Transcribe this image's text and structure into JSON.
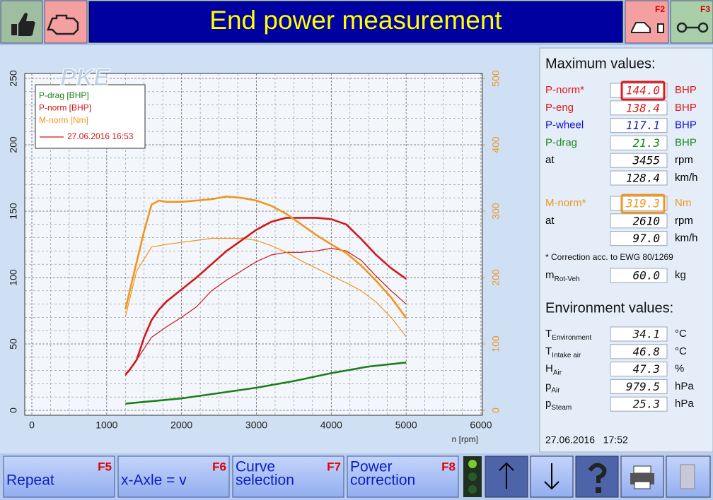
{
  "header": {
    "title": "End power measurement",
    "f2": "F2",
    "f3": "F3"
  },
  "watermark": "PKE",
  "chart_data": {
    "type": "line",
    "x_label": "n [rpm]",
    "xlim": [
      0,
      6000
    ],
    "xticks": [
      0,
      1000,
      2000,
      3000,
      4000,
      5000,
      6000
    ],
    "ylim": [
      0,
      250
    ],
    "yticks": [
      0,
      50,
      100,
      150,
      200,
      250
    ],
    "y2lim": [
      0,
      500
    ],
    "y2ticks": [
      0,
      100,
      200,
      300,
      400,
      500
    ],
    "grid": true,
    "legend": "upper left",
    "series": [
      {
        "name": "P-drag [BHP]",
        "color": "#1b7d1b",
        "x": [
          1250,
          2000,
          2500,
          3000,
          3500,
          4000,
          4500,
          5000
        ],
        "values": [
          5,
          9,
          13,
          17,
          22,
          28,
          33,
          36
        ]
      },
      {
        "name": "P-norm [BHP]",
        "color": "#d01818",
        "x": [
          1250,
          1300,
          1400,
          1500,
          1600,
          1700,
          1800,
          2000,
          2200,
          2400,
          2600,
          2800,
          3000,
          3200,
          3400,
          3600,
          3800,
          4000,
          4200,
          4400,
          4600,
          4800,
          5000
        ],
        "values": [
          27,
          30,
          38,
          55,
          68,
          76,
          82,
          91,
          100,
          110,
          120,
          128,
          136,
          142,
          145,
          145,
          145,
          144,
          140,
          129,
          117,
          107,
          99
        ]
      },
      {
        "name": "M-norm [Nm]",
        "color": "#f0961e",
        "axis": "y2",
        "x": [
          1250,
          1350,
          1500,
          1600,
          1700,
          1800,
          2000,
          2200,
          2400,
          2600,
          2800,
          3000,
          3200,
          3400,
          3600,
          3800,
          4000,
          4200,
          4400,
          4600,
          4800,
          5000
        ],
        "values": [
          152,
          200,
          270,
          310,
          316,
          314,
          314,
          316,
          318,
          322,
          320,
          316,
          308,
          296,
          280,
          264,
          250,
          237,
          218,
          195,
          170,
          139
        ]
      }
    ],
    "comparison": {
      "label": "27.06.2016 16:53",
      "color": "#d01818",
      "series": [
        {
          "color": "#c81818",
          "x": [
            1250,
            1400,
            1600,
            1800,
            2000,
            2200,
            2400,
            2600,
            2800,
            3000,
            3200,
            3400,
            3600,
            3800,
            4000,
            4200,
            4400,
            4600,
            4800,
            5000
          ],
          "values": [
            26,
            38,
            55,
            63,
            70,
            78,
            90,
            98,
            105,
            112,
            117,
            119,
            119,
            120,
            122,
            120,
            113,
            101,
            90,
            80
          ]
        },
        {
          "color": "#f0961e",
          "axis": "y2",
          "x": [
            1250,
            1400,
            1600,
            1800,
            2000,
            2200,
            2400,
            2600,
            2800,
            3000,
            3200,
            3400,
            3600,
            3800,
            4000,
            4200,
            4400,
            4600,
            4800,
            5000
          ],
          "values": [
            141,
            210,
            246,
            250,
            253,
            256,
            259,
            259,
            259,
            256,
            248,
            238,
            225,
            214,
            203,
            192,
            180,
            163,
            140,
            111
          ]
        }
      ]
    }
  },
  "max_values": {
    "title": "Maximum values:",
    "power_rows": [
      {
        "label": "P-norm*",
        "value": "144.0",
        "unit": "BHP",
        "color": "#e01818",
        "highlight": "#e01818"
      },
      {
        "label": "P-eng",
        "value": "138.4",
        "unit": "BHP",
        "color": "#e01818"
      },
      {
        "label": "P-wheel",
        "value": "117.1",
        "unit": "BHP",
        "color": "#1414d0"
      },
      {
        "label": "P-drag",
        "value": "21.3",
        "unit": "BHP",
        "color": "#1b8a1b"
      },
      {
        "label": "at",
        "value": "3455",
        "unit": "rpm",
        "color": "#000000"
      },
      {
        "value": "128.4",
        "unit": "km/h",
        "color": "#000000"
      }
    ],
    "torque_rows": [
      {
        "label": "M-norm*",
        "value": "319.3",
        "unit": "Nm",
        "color": "#f0961e",
        "highlight": "#f0961e"
      },
      {
        "label": "at",
        "value": "2610",
        "unit": "rpm",
        "color": "#000000"
      },
      {
        "value": "97.0",
        "unit": "km/h",
        "color": "#000000"
      }
    ],
    "note": "* Correction acc. to EWG 80/1269",
    "mass": {
      "symbol": "m",
      "sub": "Rot-Veh",
      "value": "60.0",
      "unit": "kg"
    }
  },
  "environment": {
    "title": "Environment values:",
    "rows": [
      {
        "symbol": "T",
        "sub": "Environment",
        "value": "34.1",
        "unit": "°C"
      },
      {
        "symbol": "T",
        "sub": "Intake air",
        "value": "46.8",
        "unit": "°C"
      },
      {
        "symbol": "H",
        "sub": "Air",
        "value": "47.3",
        "unit": "%"
      },
      {
        "symbol": "p",
        "sub": "Air",
        "value": "979.5",
        "unit": "hPa"
      },
      {
        "symbol": "p",
        "sub": "Steam",
        "value": "25.3",
        "unit": "hPa"
      }
    ]
  },
  "timestamp": "27.06.2016   17:52",
  "buttons": [
    {
      "label": [
        "Repeat"
      ],
      "key": "F5"
    },
    {
      "label": [
        "x-Axle = v"
      ],
      "key": "F6"
    },
    {
      "label": [
        "Curve",
        "selection"
      ],
      "key": "F7"
    },
    {
      "label": [
        "Power",
        "correction"
      ],
      "key": "F8"
    }
  ]
}
